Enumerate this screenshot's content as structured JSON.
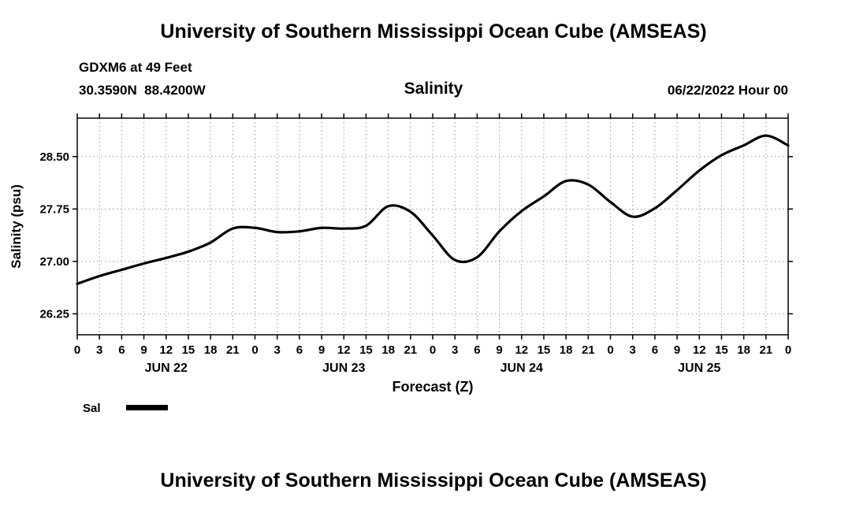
{
  "page": {
    "top_title": "University of Southern Mississippi Ocean Cube (AMSEAS)",
    "bottom_title": "University of Southern Mississippi Ocean Cube (AMSEAS)"
  },
  "header": {
    "station": "GDXM6 at 49 Feet",
    "coordinates": "30.3590N  88.4200W",
    "plot_title": "Salinity",
    "run_time": "06/22/2022 Hour 00"
  },
  "chart_data": {
    "type": "line",
    "title": "Salinity",
    "xlabel": "Forecast (Z)",
    "ylabel": "Salinity (psu)",
    "xlim": [
      0,
      96
    ],
    "ylim": [
      25.95,
      29.05
    ],
    "grid": true,
    "grid_color": "#9a9a9a",
    "line_color": "#000000",
    "x_hours": [
      0,
      3,
      6,
      9,
      12,
      15,
      18,
      21,
      24,
      27,
      30,
      33,
      36,
      39,
      42,
      45,
      48,
      51,
      54,
      57,
      60,
      63,
      66,
      69,
      72,
      75,
      78,
      81,
      84,
      87,
      90,
      93,
      96
    ],
    "series": [
      {
        "name": "Sal",
        "values": [
          26.68,
          26.79,
          26.88,
          26.97,
          27.05,
          27.14,
          27.27,
          27.47,
          27.48,
          27.42,
          27.43,
          27.48,
          27.47,
          27.51,
          27.79,
          27.71,
          27.37,
          27.02,
          27.06,
          27.43,
          27.72,
          27.93,
          28.15,
          28.1,
          27.85,
          27.64,
          27.76,
          28.02,
          28.3,
          28.52,
          28.66,
          28.8,
          28.66
        ]
      }
    ],
    "x_tick_hours": [
      0,
      3,
      6,
      9,
      12,
      15,
      18,
      21,
      24,
      27,
      30,
      33,
      36,
      39,
      42,
      45,
      48,
      51,
      54,
      57,
      60,
      63,
      66,
      69,
      72,
      75,
      78,
      81,
      84,
      87,
      90,
      93,
      96
    ],
    "x_tick_labels": [
      "0",
      "3",
      "6",
      "9",
      "12",
      "15",
      "18",
      "21",
      "0",
      "3",
      "6",
      "9",
      "12",
      "15",
      "18",
      "21",
      "0",
      "3",
      "6",
      "9",
      "12",
      "15",
      "18",
      "21",
      "0",
      "3",
      "6",
      "9",
      "12",
      "15",
      "18",
      "21",
      "0"
    ],
    "y_ticks": [
      26.25,
      27.0,
      27.75,
      28.5
    ],
    "day_labels": [
      {
        "label": "JUN 22",
        "hour": 12
      },
      {
        "label": "JUN 23",
        "hour": 36
      },
      {
        "label": "JUN 24",
        "hour": 60
      },
      {
        "label": "JUN 25",
        "hour": 84
      }
    ],
    "legend": {
      "label": "Sal",
      "position": "bottom-left"
    }
  }
}
